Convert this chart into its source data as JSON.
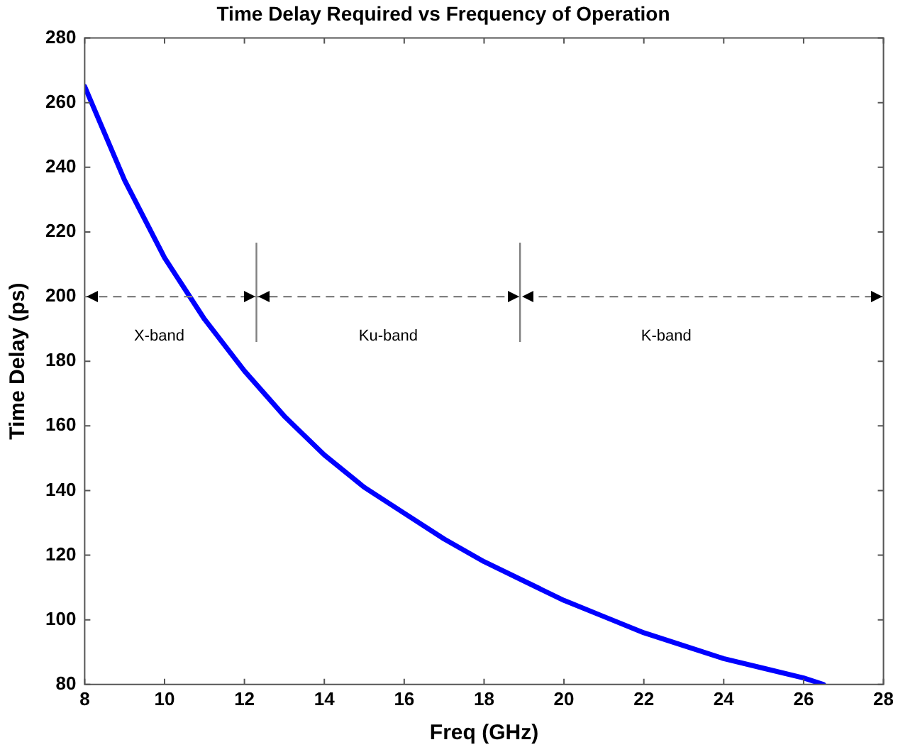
{
  "chart_data": {
    "type": "line",
    "title": "Time Delay Required vs Frequency of Operation",
    "xlabel": "Freq (GHz)",
    "ylabel": "Time Delay (ps)",
    "x": [
      8,
      9,
      10,
      11,
      12,
      13,
      14,
      15,
      16,
      17,
      18,
      19,
      20,
      21,
      22,
      23,
      24,
      25,
      26,
      26.5
    ],
    "series": [
      {
        "color": "#0000ff",
        "values": [
          265,
          236,
          212,
          193,
          177,
          163,
          151,
          141,
          133,
          125,
          118,
          112,
          106,
          101,
          96,
          92,
          88,
          85,
          82,
          80
        ]
      }
    ],
    "xlim": [
      8,
      28
    ],
    "xticks": [
      8,
      10,
      12,
      14,
      16,
      18,
      20,
      22,
      24,
      26,
      28
    ],
    "ylim": [
      80,
      280
    ],
    "yticks": [
      80,
      100,
      120,
      140,
      160,
      180,
      200,
      220,
      240,
      260,
      280
    ],
    "legend": false,
    "marker": "none",
    "line_style": "solid",
    "ref_lines": [
      {
        "axis": "y",
        "value": 200,
        "color": "#808080",
        "line_style": "dashed"
      },
      {
        "axis": "x",
        "value": 12.3,
        "color": "#808080"
      },
      {
        "axis": "x",
        "value": 18.9,
        "color": "#808080"
      }
    ],
    "annotations": [
      "X-band",
      "Ku-band",
      "K-band"
    ]
  }
}
